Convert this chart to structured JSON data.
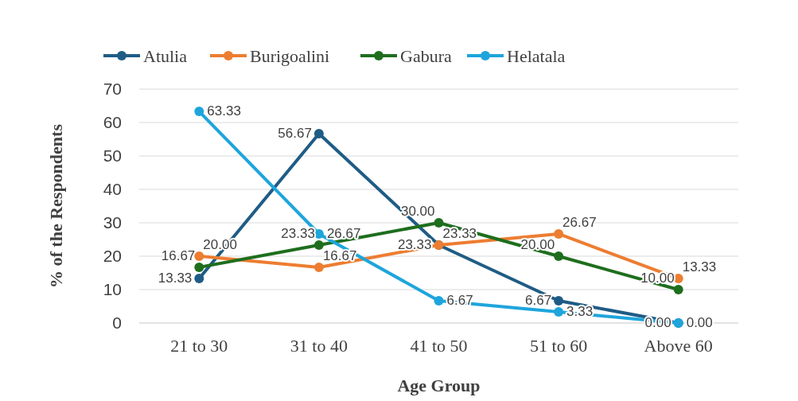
{
  "chart_data": {
    "type": "line",
    "xlabel": "Age Group",
    "ylabel": "% of the Respondents",
    "categories": [
      "21 to 30",
      "31 to 40",
      "41 to 50",
      "51 to 60",
      "Above 60"
    ],
    "series": [
      {
        "name": "Atulia",
        "color": "#1f5c85",
        "values": [
          13.33,
          56.67,
          23.33,
          6.67,
          0
        ],
        "value_labels": [
          "13.33",
          "56.67",
          "23.33",
          "6.67",
          "0.00"
        ]
      },
      {
        "name": "Burigoalini",
        "color": "#ed7d31",
        "values": [
          20,
          16.67,
          23.33,
          26.67,
          13.33
        ],
        "value_labels": [
          "20.00",
          "16.67",
          "23.33",
          "26.67",
          "13.33"
        ]
      },
      {
        "name": "Gabura",
        "color": "#1e6e1e",
        "values": [
          16.67,
          23.33,
          30,
          20,
          10
        ],
        "value_labels": [
          "16.67",
          "23.33",
          "30.00",
          "20.00",
          "10.00"
        ]
      },
      {
        "name": "Helatala",
        "color": "#1ea5dc",
        "values": [
          63.33,
          26.67,
          6.67,
          3.33,
          0
        ],
        "value_labels": [
          "63.33",
          "26.67",
          "6.67",
          "3.33",
          "0.00"
        ]
      }
    ],
    "ylim": [
      0,
      70
    ],
    "yticks": [
      0,
      10,
      20,
      30,
      40,
      50,
      60,
      70
    ],
    "grid": "y",
    "legend": "top",
    "marker": "circle"
  }
}
